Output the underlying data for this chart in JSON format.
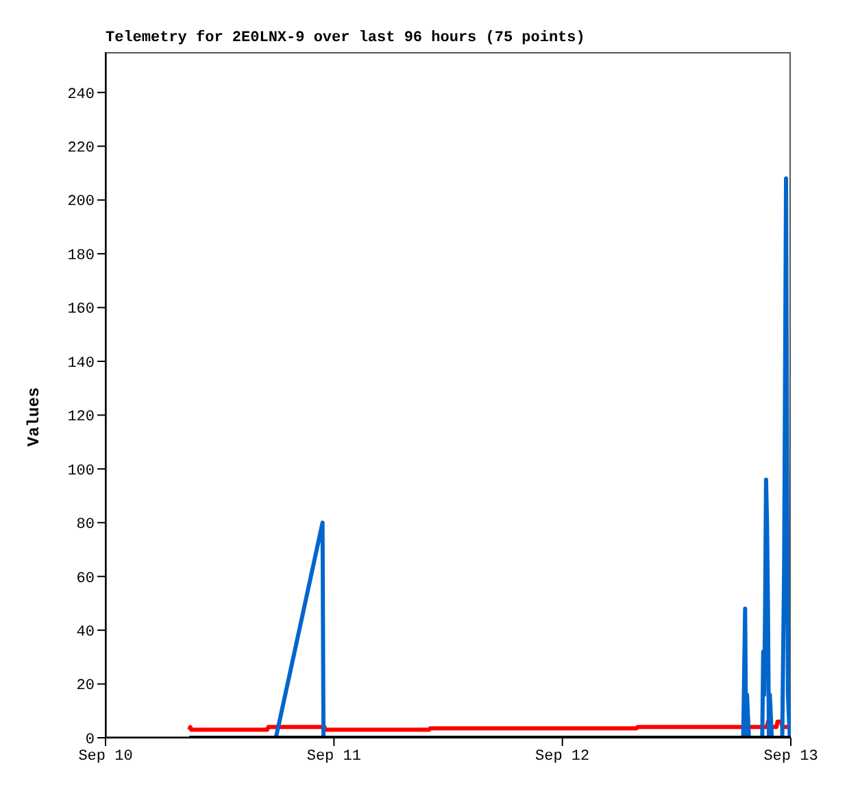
{
  "chart_data": {
    "type": "line",
    "title": "Telemetry for 2E0LNX-9 over last 96 hours (75 points)",
    "ylabel": "Values",
    "xlim": [
      "--09-10",
      "--09-13"
    ],
    "xticks": [
      {
        "value": "--09-10",
        "label": "Sep 10"
      },
      {
        "value": "--09-11",
        "label": "Sep 11"
      },
      {
        "value": "--09-12",
        "label": "Sep 12"
      },
      {
        "value": "--09-13",
        "label": "Sep 13"
      }
    ],
    "ylim": [
      0,
      255
    ],
    "yticks": [
      0,
      20,
      40,
      60,
      80,
      100,
      120,
      140,
      160,
      180,
      200,
      220,
      240
    ],
    "grid": false,
    "marker": "none",
    "line_style": "solid",
    "series": [
      {
        "color": "#ff0000",
        "x": [
          "--09-10T08:48",
          "--09-10T08:54",
          "--09-10T09:00",
          "--09-10T17:00",
          "--09-10T17:06",
          "--09-10T23:00",
          "--09-10T23:06",
          "--09-11T10:00",
          "--09-11T10:06",
          "--09-12T07:48",
          "--09-12T07:54",
          "--09-12T19:00",
          "--09-12T19:06",
          "--09-12T19:30",
          "--09-12T21:30",
          "--09-12T21:36",
          "--09-12T21:42",
          "--09-12T22:30",
          "--09-12T22:36",
          "--09-12T23:00",
          "--09-12T23:06",
          "--09-13T00:00"
        ],
        "values": [
          3,
          4,
          3,
          3,
          4,
          4,
          3,
          3,
          3.5,
          3.5,
          4,
          4,
          3,
          4,
          4,
          6,
          4,
          4,
          6,
          6,
          4,
          4
        ]
      },
      {
        "color": "#0066cc",
        "x": [
          "--09-10T17:54",
          "--09-10T22:48",
          "--09-10T22:54",
          "--09-12T19:00",
          "--09-12T19:06",
          "--09-12T19:12",
          "--09-12T19:18",
          "--09-12T19:24",
          "--09-12T19:30",
          "--09-12T19:36",
          "--09-12T21:00",
          "--09-12T21:06",
          "--09-12T21:12",
          "--09-12T21:18",
          "--09-12T21:24",
          "--09-12T21:30",
          "--09-12T21:36",
          "--09-12T21:42",
          "--09-12T21:48",
          "--09-12T22:00",
          "--09-12T23:06",
          "--09-12T23:12",
          "--09-12T23:18",
          "--09-12T23:30",
          "--09-12T23:36",
          "--09-12T23:42",
          "--09-12T23:54"
        ],
        "values": [
          0,
          80,
          0,
          0,
          24,
          48,
          0,
          16,
          8,
          0,
          0,
          32,
          16,
          48,
          96,
          80,
          48,
          0,
          16,
          0,
          0,
          32,
          64,
          208,
          112,
          16,
          0
        ]
      },
      {
        "color": "#000000",
        "x": [
          "--09-10T08:48",
          "--09-13T00:00"
        ],
        "values": [
          0,
          0
        ]
      }
    ]
  }
}
